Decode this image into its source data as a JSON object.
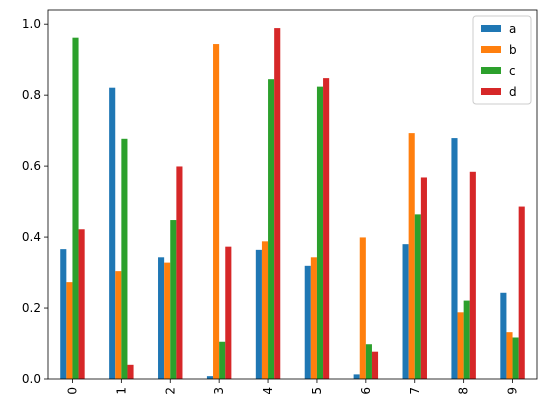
{
  "chart_data": {
    "type": "bar",
    "categories": [
      "0",
      "1",
      "2",
      "3",
      "4",
      "5",
      "6",
      "7",
      "8",
      "9"
    ],
    "series": [
      {
        "name": "a",
        "color": "#1f77b4",
        "values": [
          0.366,
          0.821,
          0.343,
          0.008,
          0.364,
          0.319,
          0.013,
          0.38,
          0.679,
          0.243
        ]
      },
      {
        "name": "b",
        "color": "#ff7f0e",
        "values": [
          0.273,
          0.304,
          0.328,
          0.944,
          0.388,
          0.343,
          0.399,
          0.693,
          0.188,
          0.132
        ]
      },
      {
        "name": "c",
        "color": "#2ca02c",
        "values": [
          0.962,
          0.677,
          0.448,
          0.105,
          0.845,
          0.824,
          0.098,
          0.464,
          0.221,
          0.117
        ]
      },
      {
        "name": "d",
        "color": "#d62728",
        "values": [
          0.422,
          0.04,
          0.599,
          0.373,
          0.989,
          0.848,
          0.077,
          0.568,
          0.584,
          0.486
        ]
      }
    ],
    "y_ticks": [
      "0.0",
      "0.2",
      "0.4",
      "0.6",
      "0.8",
      "1.0"
    ],
    "ylim": [
      0,
      1.04
    ],
    "legend_position": "top-right",
    "x_tick_rotation": "vertical",
    "grid": false,
    "title": "",
    "xlabel": "",
    "ylabel": ""
  }
}
